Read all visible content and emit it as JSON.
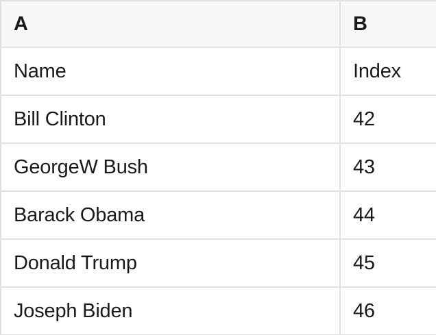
{
  "table": {
    "header": [
      "A",
      "B"
    ],
    "rows": [
      [
        "Name",
        "Index"
      ],
      [
        "Bill Clinton",
        "42"
      ],
      [
        "GeorgeW Bush",
        "43"
      ],
      [
        "Barack Obama",
        "44"
      ],
      [
        "Donald Trump",
        "45"
      ],
      [
        "Joseph Biden",
        "46"
      ]
    ]
  },
  "colors": {
    "header_bg": "#f7f7f7",
    "row_bg": "#ffffff",
    "border": "#e0e0e0",
    "text": "#1a1a1a"
  }
}
